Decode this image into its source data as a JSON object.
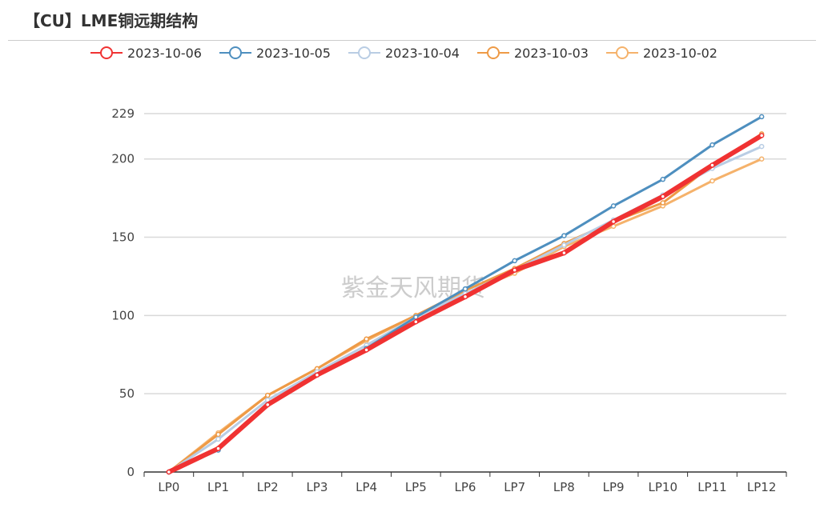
{
  "header": {
    "title": "【CU】LME铜远期结构"
  },
  "watermark": "紫金天风期货",
  "chart_data": {
    "type": "line",
    "title": "【CU】LME铜远期结构",
    "xlabel": "",
    "ylabel": "",
    "categories": [
      "LP0",
      "LP1",
      "LP2",
      "LP3",
      "LP4",
      "LP5",
      "LP6",
      "LP7",
      "LP8",
      "LP9",
      "LP10",
      "LP11",
      "LP12"
    ],
    "ylim": [
      0,
      229
    ],
    "yticks": [
      0,
      50,
      100,
      150,
      200,
      229
    ],
    "grid": true,
    "legend_position": "top",
    "series": [
      {
        "name": "2023-10-02",
        "color": "#f5b26b",
        "width": 3,
        "values": [
          0,
          25,
          49,
          66,
          84,
          100,
          114,
          127,
          144,
          157,
          170,
          186,
          200
        ]
      },
      {
        "name": "2023-10-03",
        "color": "#ee9a46",
        "width": 3,
        "values": [
          0,
          24,
          49,
          66,
          85,
          100,
          116,
          130,
          146,
          160,
          172,
          196,
          216
        ]
      },
      {
        "name": "2023-10-04",
        "color": "#b9cde4",
        "width": 3,
        "values": [
          0,
          21,
          46,
          64,
          81,
          99,
          114,
          129,
          145,
          161,
          177,
          194,
          208
        ]
      },
      {
        "name": "2023-10-05",
        "color": "#4e8fbf",
        "width": 3,
        "values": [
          0,
          14,
          43,
          62,
          79,
          99,
          117,
          135,
          151,
          170,
          187,
          209,
          227
        ]
      },
      {
        "name": "2023-10-06",
        "color": "#f03232",
        "width": 6,
        "values": [
          0,
          15,
          43,
          62,
          78,
          96,
          112,
          129,
          140,
          160,
          176,
          196,
          215
        ]
      }
    ],
    "legend_order": [
      "2023-10-06",
      "2023-10-05",
      "2023-10-04",
      "2023-10-03",
      "2023-10-02"
    ]
  }
}
